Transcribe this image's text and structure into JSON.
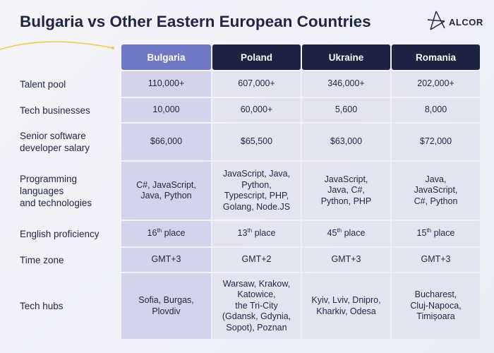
{
  "header": {
    "title": "Bulgaria vs Other Eastern European Countries",
    "logo": "ALCOR"
  },
  "table": {
    "columns": [
      "Bulgaria",
      "Poland",
      "Ukraine",
      "Romania"
    ],
    "rows": [
      {
        "label": [
          "Talent pool"
        ],
        "cells": [
          [
            "110,000+"
          ],
          [
            "607,000+"
          ],
          [
            "346,000+"
          ],
          [
            "202,000+"
          ]
        ]
      },
      {
        "label": [
          "Tech businesses"
        ],
        "cells": [
          [
            "10,000"
          ],
          [
            "60,000+"
          ],
          [
            "5,600"
          ],
          [
            "8,000"
          ]
        ]
      },
      {
        "label": [
          "Senior software",
          "developer salary"
        ],
        "cells": [
          [
            "$66,000"
          ],
          [
            "$65,500"
          ],
          [
            "$63,000"
          ],
          [
            "$72,000"
          ]
        ]
      },
      {
        "label": [
          "Programming",
          "languages",
          "and technologies"
        ],
        "cells": [
          [
            "C#, JavaScript,",
            "Java, Python"
          ],
          [
            "JavaScript, Java,",
            "Python,",
            "Typescript, PHP,",
            "Golang, Node.JS"
          ],
          [
            "JavaScript,",
            "Java, C#,",
            "Python, PHP"
          ],
          [
            "Java,",
            "JavaScript,",
            "C#, Python"
          ]
        ]
      },
      {
        "label": [
          "English proficiency"
        ],
        "cells": [
          [
            {
              "num": "16",
              "sup": "th",
              "rest": " place"
            }
          ],
          [
            {
              "num": "13",
              "sup": "th",
              "rest": " place"
            }
          ],
          [
            {
              "num": "45",
              "sup": "th",
              "rest": " place"
            }
          ],
          [
            {
              "num": "15",
              "sup": "th",
              "rest": " place"
            }
          ]
        ]
      },
      {
        "label": [
          "Time zone"
        ],
        "cells": [
          [
            "GMT+3"
          ],
          [
            "GMT+2"
          ],
          [
            "GMT+3"
          ],
          [
            "GMT+3"
          ]
        ]
      },
      {
        "label": [
          "Tech hubs"
        ],
        "cells": [
          [
            "Sofia, Burgas,",
            "Plovdiv"
          ],
          [
            "Warsaw, Krakow,",
            "Katowice,",
            "the Tri-City",
            "(Gdansk, Gdynia,",
            "Sopot), Poznan"
          ],
          [
            "Kyiv, Lviv, Dnipro,",
            "Kharkiv, Odesa"
          ],
          [
            "Bucharest,",
            "Cluj-Napoca,",
            "Timișoara"
          ]
        ]
      }
    ]
  }
}
